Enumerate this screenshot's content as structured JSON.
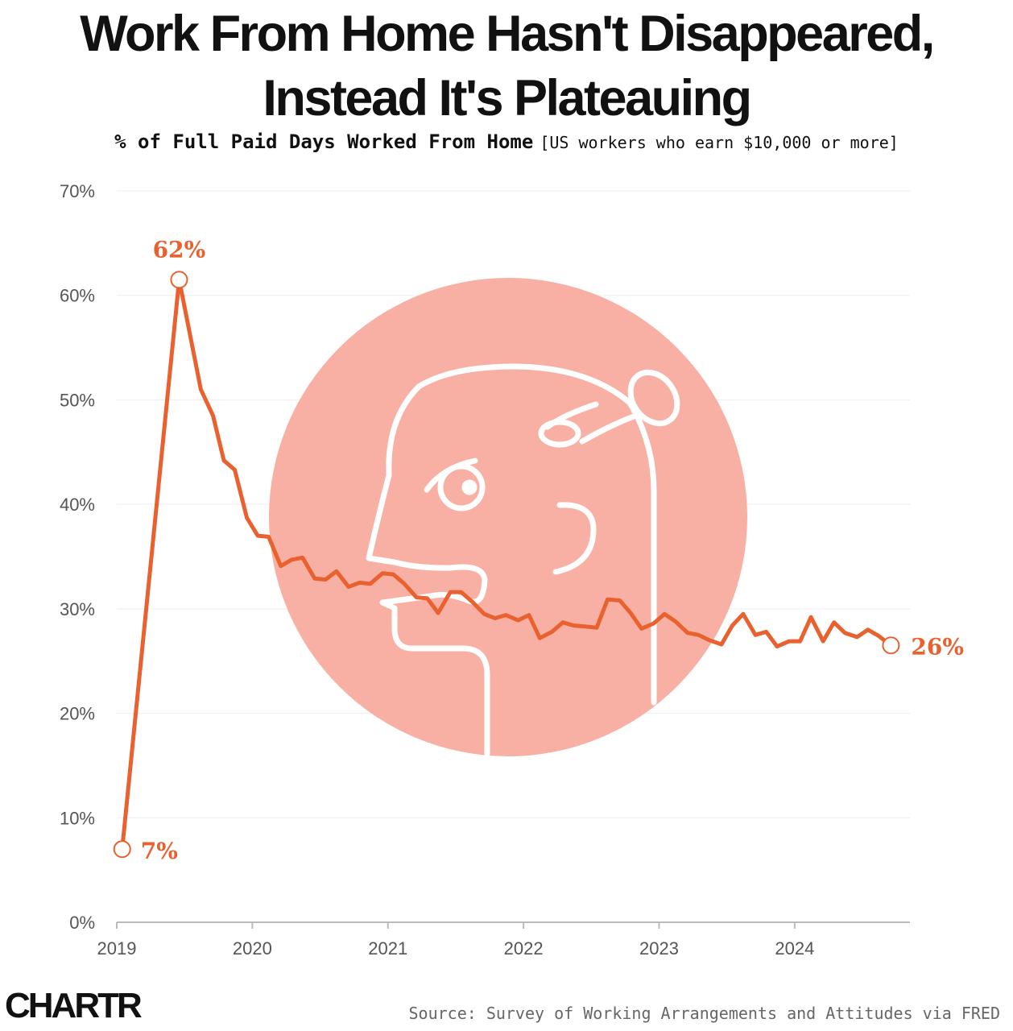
{
  "header": {
    "title_line1": "Work From Home Hasn't Disappeared,",
    "title_line2": "Instead It's Plateauing",
    "subtitle": "% of Full Paid Days Worked From Home",
    "subtitle_note": "[US workers who earn $10,000 or more]"
  },
  "footer": {
    "logo": "CHARTR",
    "source": "Source: Survey of Working Arrangements and Attitudes via FRED"
  },
  "colors": {
    "line": "#e9612f",
    "illustration_circle": "#f9b0a4",
    "grid": "#eeeeee"
  },
  "illustration_icon": "confused-head-with-nail-icon",
  "chart_data": {
    "type": "line",
    "y_unit": "%",
    "ylim": [
      0,
      70
    ],
    "yticks": [
      0,
      10,
      20,
      30,
      40,
      50,
      60,
      70
    ],
    "yticklabels": [
      "0%",
      "10%",
      "20%",
      "30%",
      "40%",
      "50%",
      "60%",
      "70%"
    ],
    "xlim": [
      2019,
      2024.85
    ],
    "xticks": [
      2019,
      2020,
      2021,
      2022,
      2023,
      2024
    ],
    "xticklabels": [
      "2019",
      "2020",
      "2021",
      "2022",
      "2023",
      "2024"
    ],
    "grid": true,
    "x": [
      2019.04,
      2019.46,
      2019.62,
      2019.71,
      2019.79,
      2019.87,
      2019.96,
      2020.04,
      2020.12,
      2020.21,
      2020.29,
      2020.37,
      2020.46,
      2020.54,
      2020.62,
      2020.71,
      2020.79,
      2020.87,
      2020.96,
      2021.04,
      2021.12,
      2021.21,
      2021.29,
      2021.37,
      2021.46,
      2021.54,
      2021.62,
      2021.71,
      2021.79,
      2021.87,
      2021.96,
      2022.04,
      2022.12,
      2022.21,
      2022.29,
      2022.37,
      2022.46,
      2022.54,
      2022.62,
      2022.71,
      2022.79,
      2022.87,
      2022.96,
      2023.04,
      2023.12,
      2023.21,
      2023.29,
      2023.37,
      2023.46,
      2023.54,
      2023.62,
      2023.71,
      2023.79,
      2023.87,
      2023.96,
      2024.04,
      2024.12,
      2024.21,
      2024.29,
      2024.37,
      2024.46,
      2024.54,
      2024.62,
      2024.71
    ],
    "y": [
      7.0,
      61.5,
      51.0,
      48.5,
      44.2,
      43.3,
      38.7,
      37.0,
      36.9,
      34.1,
      34.7,
      34.9,
      32.9,
      32.8,
      33.6,
      32.1,
      32.5,
      32.4,
      33.4,
      33.3,
      32.4,
      31.1,
      31.0,
      29.6,
      31.6,
      31.6,
      30.7,
      29.5,
      29.1,
      29.4,
      28.9,
      29.4,
      27.2,
      27.8,
      28.7,
      28.4,
      28.3,
      28.2,
      30.9,
      30.8,
      29.6,
      28.1,
      28.6,
      29.5,
      28.8,
      27.7,
      27.5,
      27.0,
      26.6,
      28.4,
      29.5,
      27.5,
      27.8,
      26.4,
      26.9,
      26.9,
      29.2,
      26.9,
      28.7,
      27.7,
      27.3,
      28.0,
      27.4,
      26.5
    ],
    "annotations": [
      {
        "label": "7%",
        "point": "first"
      },
      {
        "label": "62%",
        "point": "peak"
      },
      {
        "label": "26%",
        "point": "last"
      }
    ]
  }
}
